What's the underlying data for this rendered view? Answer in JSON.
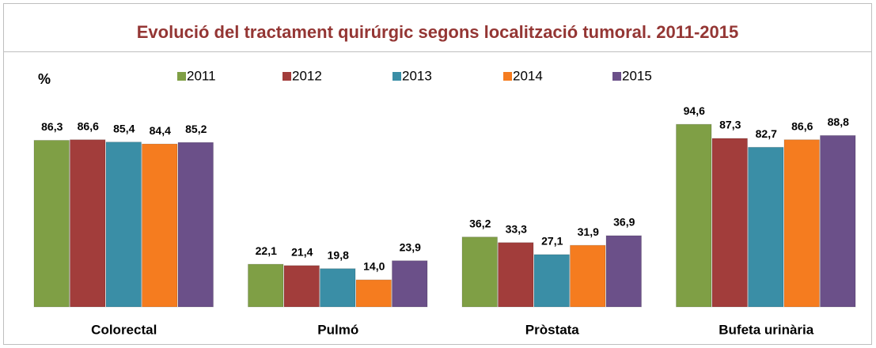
{
  "chart_data": {
    "type": "bar",
    "title": "Evolució del tractament quirúrgic segons localització tumoral. 2011-2015",
    "y_label": "%",
    "categories": [
      "Colorectal",
      "Pulmó",
      "Pròstata",
      "Bufeta urinària"
    ],
    "series": [
      {
        "name": "2011",
        "color": "#7f9f45",
        "values": [
          86.3,
          22.1,
          36.2,
          94.6
        ],
        "value_labels": [
          "86,3",
          "22,1",
          "36,2",
          "94,6"
        ]
      },
      {
        "name": "2012",
        "color": "#a23d3b",
        "values": [
          86.6,
          21.4,
          33.3,
          87.3
        ],
        "value_labels": [
          "86,6",
          "21,4",
          "33,3",
          "87,3"
        ]
      },
      {
        "name": "2013",
        "color": "#3a8ea6",
        "values": [
          85.4,
          19.8,
          27.1,
          82.7
        ],
        "value_labels": [
          "85,4",
          "19,8",
          "27,1",
          "82,7"
        ]
      },
      {
        "name": "2014",
        "color": "#f57c1f",
        "values": [
          84.4,
          14.0,
          31.9,
          86.6
        ],
        "value_labels": [
          "84,4",
          "14,0",
          "31,9",
          "86,6"
        ]
      },
      {
        "name": "2015",
        "color": "#6b5089",
        "values": [
          85.2,
          23.9,
          36.9,
          88.8
        ],
        "value_labels": [
          "85,2",
          "23,9",
          "36,9",
          "88,8"
        ]
      }
    ]
  }
}
